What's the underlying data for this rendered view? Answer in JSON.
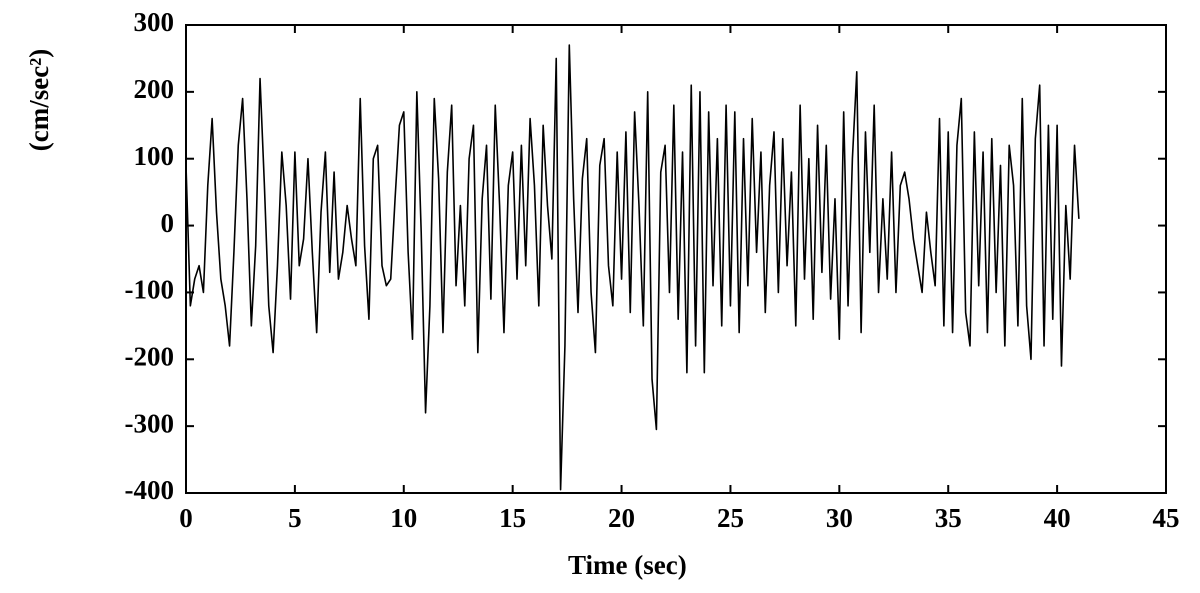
{
  "chart_data": {
    "type": "line",
    "y_label": "(cm/sec²)",
    "x_label": "Time (sec)",
    "color": "#000000",
    "xlim": [
      0,
      45
    ],
    "xticks": [
      0,
      5,
      10,
      15,
      20,
      25,
      30,
      35,
      40,
      45
    ],
    "ylim": [
      -400,
      300
    ],
    "yticks": [
      -400,
      -300,
      -200,
      -100,
      0,
      100,
      200,
      300
    ],
    "x": [
      0,
      0.2,
      0.4,
      0.6,
      0.8,
      1,
      1.2,
      1.4,
      1.6,
      1.8,
      2,
      2.2,
      2.4,
      2.6,
      2.8,
      3,
      3.2,
      3.4,
      3.6,
      3.8,
      4,
      4.2,
      4.4,
      4.6,
      4.8,
      5,
      5.2,
      5.4,
      5.6,
      5.8,
      6,
      6.2,
      6.4,
      6.6,
      6.8,
      7,
      7.2,
      7.4,
      7.6,
      7.8,
      8,
      8.2,
      8.4,
      8.6,
      8.8,
      9,
      9.2,
      9.4,
      9.6,
      9.8,
      10,
      10.2,
      10.4,
      10.6,
      10.8,
      11,
      11.2,
      11.4,
      11.6,
      11.8,
      12,
      12.2,
      12.4,
      12.6,
      12.8,
      13,
      13.2,
      13.4,
      13.6,
      13.8,
      14,
      14.2,
      14.4,
      14.6,
      14.8,
      15,
      15.2,
      15.4,
      15.6,
      15.8,
      16,
      16.2,
      16.4,
      16.6,
      16.8,
      17,
      17.2,
      17.4,
      17.6,
      17.8,
      18,
      18.2,
      18.4,
      18.6,
      18.8,
      19,
      19.2,
      19.4,
      19.6,
      19.8,
      20,
      20.2,
      20.4,
      20.6,
      20.8,
      21,
      21.2,
      21.4,
      21.6,
      21.8,
      22,
      22.2,
      22.4,
      22.6,
      22.8,
      23,
      23.2,
      23.4,
      23.6,
      23.8,
      24,
      24.2,
      24.4,
      24.6,
      24.8,
      25,
      25.2,
      25.4,
      25.6,
      25.8,
      26,
      26.2,
      26.4,
      26.6,
      26.8,
      27,
      27.2,
      27.4,
      27.6,
      27.8,
      28,
      28.2,
      28.4,
      28.6,
      28.8,
      29,
      29.2,
      29.4,
      29.6,
      29.8,
      30,
      30.2,
      30.4,
      30.6,
      30.8,
      31,
      31.2,
      31.4,
      31.6,
      31.8,
      32,
      32.2,
      32.4,
      32.6,
      32.8,
      33,
      33.2,
      33.4,
      33.6,
      33.8,
      34,
      34.2,
      34.4,
      34.6,
      34.8,
      35,
      35.2,
      35.4,
      35.6,
      35.8,
      36,
      36.2,
      36.4,
      36.6,
      36.8,
      37,
      37.2,
      37.4,
      37.6,
      37.8,
      38,
      38.2,
      38.4,
      38.6,
      38.8,
      39,
      39.2,
      39.4,
      39.6,
      39.8,
      40,
      40.2,
      40.4,
      40.6,
      40.8,
      41
    ],
    "values": [
      90,
      -120,
      -80,
      -60,
      -100,
      60,
      160,
      20,
      -80,
      -120,
      -180,
      -40,
      120,
      190,
      40,
      -150,
      -30,
      220,
      60,
      -120,
      -190,
      -60,
      110,
      30,
      -110,
      110,
      -60,
      -20,
      100,
      -40,
      -160,
      20,
      110,
      -70,
      80,
      -80,
      -40,
      30,
      -20,
      -60,
      190,
      -30,
      -140,
      100,
      120,
      -60,
      -90,
      -80,
      40,
      150,
      170,
      -40,
      -170,
      200,
      -10,
      -280,
      -120,
      190,
      70,
      -160,
      80,
      180,
      -90,
      30,
      -120,
      100,
      150,
      -190,
      40,
      120,
      -110,
      180,
      30,
      -160,
      60,
      110,
      -80,
      120,
      -60,
      160,
      60,
      -120,
      150,
      30,
      -50,
      250,
      -395,
      -180,
      270,
      40,
      -130,
      70,
      130,
      -100,
      -190,
      90,
      130,
      -60,
      -120,
      110,
      -80,
      140,
      -130,
      170,
      30,
      -150,
      200,
      -230,
      -305,
      80,
      120,
      -100,
      180,
      -140,
      110,
      -220,
      210,
      -180,
      200,
      -220,
      170,
      -90,
      130,
      -150,
      180,
      -120,
      170,
      -160,
      130,
      -90,
      160,
      -40,
      110,
      -130,
      60,
      140,
      -100,
      130,
      -60,
      80,
      -150,
      180,
      -80,
      100,
      -140,
      150,
      -70,
      120,
      -110,
      40,
      -170,
      170,
      -120,
      100,
      230,
      -160,
      140,
      -40,
      180,
      -100,
      40,
      -80,
      110,
      -100,
      60,
      80,
      40,
      -20,
      -60,
      -100,
      20,
      -40,
      -90,
      160,
      -150,
      140,
      -160,
      120,
      190,
      -130,
      -180,
      140,
      -90,
      110,
      -160,
      130,
      -100,
      90,
      -180,
      120,
      60,
      -150,
      190,
      -120,
      -200,
      130,
      210,
      -180,
      150,
      -140,
      150,
      -210,
      30,
      -80,
      120,
      10
    ]
  }
}
